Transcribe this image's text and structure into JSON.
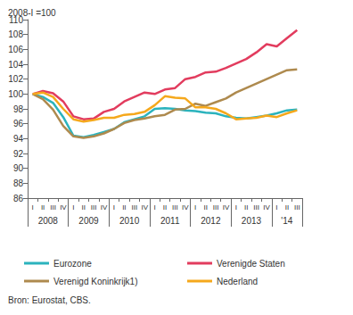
{
  "chart_data": {
    "type": "line",
    "y_label": "2008-I =100",
    "source": "Bron: Eurostat, CBS.",
    "categories": [
      "I",
      "II",
      "III",
      "IV",
      "I",
      "II",
      "III",
      "IV",
      "I",
      "II",
      "III",
      "IV",
      "I",
      "II",
      "III",
      "IV",
      "I",
      "II",
      "III",
      "IV",
      "I",
      "II",
      "III",
      "IV",
      "I",
      "II",
      "III"
    ],
    "x_groups": [
      {
        "label": "2008",
        "span": 4
      },
      {
        "label": "2009",
        "span": 4
      },
      {
        "label": "2010",
        "span": 4
      },
      {
        "label": "2011",
        "span": 4
      },
      {
        "label": "2012",
        "span": 4
      },
      {
        "label": "2013",
        "span": 4
      },
      {
        "label": "'14",
        "span": 3
      }
    ],
    "series": [
      {
        "name": "Eurozone",
        "color": "#2bb3bd",
        "values": [
          100,
          99.6,
          98.8,
          96.9,
          94.4,
          94.2,
          94.5,
          94.9,
          95.3,
          96.2,
          96.6,
          97.0,
          98.0,
          98.1,
          98.0,
          97.8,
          97.7,
          97.5,
          97.4,
          97.0,
          96.8,
          96.7,
          96.9,
          97.1,
          97.4,
          97.8,
          97.9
        ]
      },
      {
        "name": "Verenigde Staten",
        "color": "#e23c5e",
        "values": [
          100,
          100.4,
          100.1,
          99.0,
          97.0,
          96.6,
          96.7,
          97.6,
          98.0,
          99.0,
          99.6,
          100.2,
          100.0,
          100.6,
          100.8,
          102.0,
          102.3,
          102.9,
          103.0,
          103.5,
          104.1,
          104.7,
          105.6,
          106.7,
          106.4,
          107.5,
          108.6
        ]
      },
      {
        "name": "Verenigd Koninkrijk1)",
        "color": "#ae8a4e",
        "values": [
          100,
          99.3,
          97.9,
          95.7,
          94.3,
          94.1,
          94.3,
          94.7,
          95.3,
          96.1,
          96.5,
          96.7,
          97.0,
          97.2,
          97.9,
          98.0,
          98.7,
          98.4,
          98.9,
          99.4,
          100.2,
          100.8,
          101.4,
          102.0,
          102.6,
          103.2,
          103.3
        ]
      },
      {
        "name": "Nederland",
        "color": "#f5a81c",
        "values": [
          100,
          100.2,
          99.6,
          98.0,
          96.6,
          96.3,
          96.5,
          96.8,
          96.8,
          97.2,
          97.3,
          97.6,
          98.5,
          99.7,
          99.5,
          99.4,
          98.2,
          98.2,
          98.0,
          97.4,
          96.6,
          96.7,
          96.8,
          97.1,
          96.9,
          97.4,
          97.8
        ]
      }
    ],
    "ylim": [
      86,
      110
    ],
    "yticks": [
      86,
      88,
      90,
      92,
      94,
      96,
      98,
      100,
      102,
      104,
      106,
      108,
      110
    ],
    "grid": false,
    "legend": "bottom"
  }
}
